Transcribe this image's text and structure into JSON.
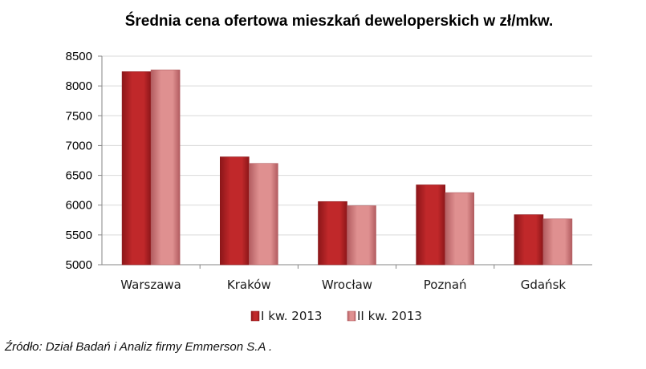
{
  "chart_data": {
    "type": "bar",
    "title": "Średnia cena ofertowa mieszkań deweloperskich w zł/mkw.",
    "categories": [
      "Warszawa",
      "Kraków",
      "Wrocław",
      "Poznań",
      "Gdańsk"
    ],
    "series": [
      {
        "name": "I kw. 2013",
        "values": [
          8240,
          6810,
          6060,
          6340,
          5840
        ],
        "color": "#c0282a",
        "color_dark": "#8c1619"
      },
      {
        "name": "II kw. 2013",
        "values": [
          8270,
          6700,
          5990,
          6210,
          5770
        ],
        "color": "#df9090",
        "color_dark": "#b25c60"
      }
    ],
    "yticks": [
      "8500",
      "8000",
      "7500",
      "7000",
      "6500",
      "6000",
      "5500",
      "5000"
    ],
    "ylim": [
      5000,
      8500
    ],
    "xlabel": "",
    "ylabel": "",
    "grid": true,
    "legend_position": "bottom"
  },
  "source_note": "Źródło: Dział Badań i Analiz firmy Emmerson S.A ."
}
